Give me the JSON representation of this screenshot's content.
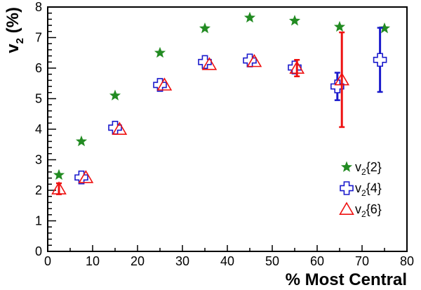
{
  "chart_data": {
    "type": "scatter",
    "xlabel": "% Most Central",
    "ylabel": "v",
    "ylabel_sub": "2",
    "ylabel_suffix": " (%)",
    "xlim": [
      0,
      80
    ],
    "ylim": [
      0,
      8
    ],
    "x_ticks": [
      0,
      10,
      20,
      30,
      40,
      50,
      60,
      70,
      80
    ],
    "y_ticks": [
      0,
      1,
      2,
      3,
      4,
      5,
      6,
      7,
      8
    ],
    "grid": false,
    "legend_position": "bottom-right",
    "series": [
      {
        "name": "v2{2}",
        "name_main": "v",
        "name_sub": "2",
        "name_tail": "{2}",
        "marker": "star",
        "color": "#228b22",
        "x": [
          2.5,
          7.5,
          15,
          25,
          35,
          45,
          55,
          65,
          75
        ],
        "y": [
          2.5,
          3.6,
          5.1,
          6.5,
          7.3,
          7.65,
          7.55,
          7.35,
          7.3
        ],
        "err": [
          0,
          0,
          0,
          0,
          0,
          0,
          0,
          0,
          0
        ]
      },
      {
        "name": "v2{4}",
        "name_main": "v",
        "name_sub": "2",
        "name_tail": "{4}",
        "marker": "cross",
        "color": "#1a1acc",
        "x": [
          7.5,
          15,
          25,
          35,
          45,
          55,
          64.5,
          74
        ],
        "y": [
          2.42,
          4.05,
          5.45,
          6.2,
          6.25,
          6.02,
          5.4,
          6.27
        ],
        "err": [
          0.05,
          0.05,
          0.05,
          0.05,
          0.05,
          0.08,
          0.45,
          1.05
        ]
      },
      {
        "name": "v2{6}",
        "name_main": "v",
        "name_sub": "2",
        "name_tail": "{6}",
        "marker": "triangle",
        "color": "#ee1111",
        "x": [
          2.5,
          8.5,
          16,
          26,
          36,
          46,
          55.5,
          65.5
        ],
        "y": [
          2.05,
          2.42,
          4.0,
          5.45,
          6.12,
          6.22,
          6.0,
          5.62
        ],
        "err": [
          0.18,
          0.05,
          0.05,
          0.05,
          0.05,
          0.05,
          0.27,
          1.55
        ]
      }
    ]
  }
}
